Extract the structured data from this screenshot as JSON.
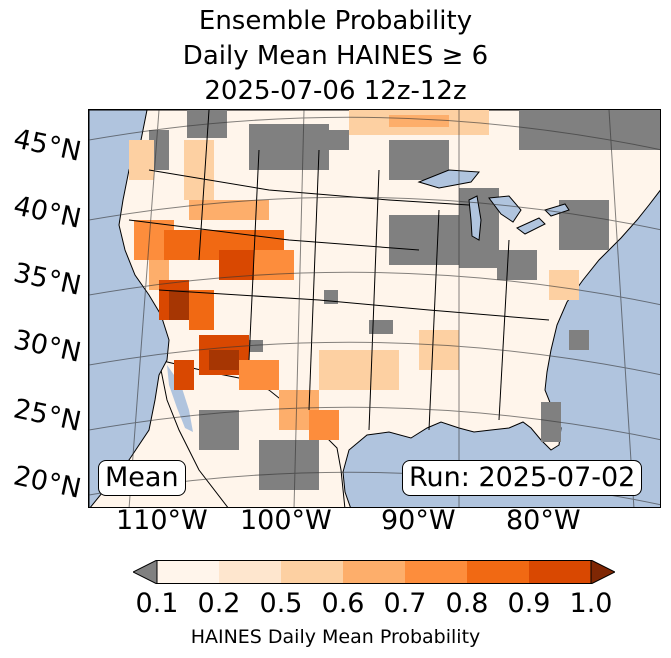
{
  "title": {
    "line1": "Ensemble Probability",
    "line2": "Daily Mean HAINES ≥ 6",
    "line3": "2025-07-06 12z-12z"
  },
  "map": {
    "lat_labels": [
      "45°N",
      "40°N",
      "35°N",
      "30°N",
      "25°N",
      "20°N"
    ],
    "lon_labels": [
      "110°W",
      "100°W",
      "90°W",
      "80°W"
    ],
    "stat_label": "Mean",
    "run_label": "Run: 2025-07-02",
    "colors": {
      "ocean": "#b0c4de",
      "land_low": "#fff5eb",
      "masked": "#808080",
      "outline": "#000000"
    }
  },
  "colorbar": {
    "tick_labels": [
      "0.1",
      "0.2",
      "0.5",
      "0.6",
      "0.7",
      "0.8",
      "0.9",
      "1.0"
    ],
    "label": "HAINES Daily Mean Probability",
    "colors": [
      "#fff5eb",
      "#fee6ce",
      "#fdd0a2",
      "#fdae6b",
      "#fd8d3c",
      "#f16913",
      "#d94801",
      "#a63603"
    ],
    "under_color": "#808080",
    "over_color": "#7f2704"
  }
}
